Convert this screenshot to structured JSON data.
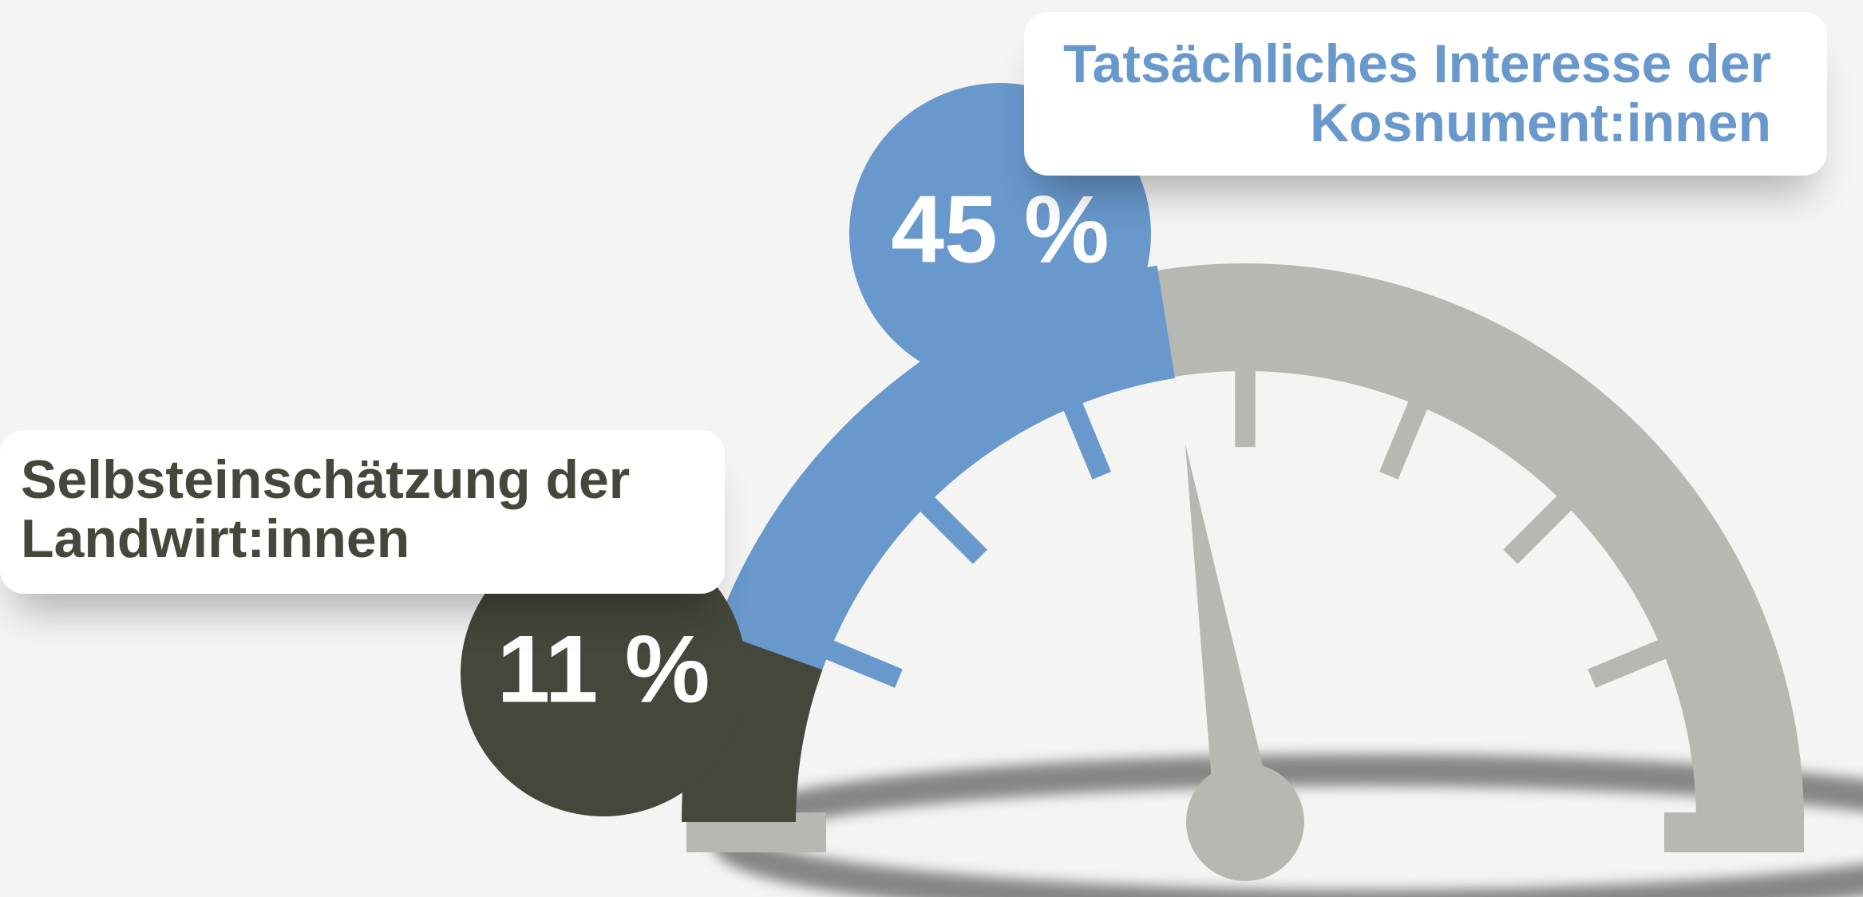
{
  "chart_data": {
    "type": "gauge",
    "ylim": [
      0,
      100
    ],
    "yticks": [
      12.5,
      25,
      37.5,
      50,
      62.5,
      75,
      87.5
    ],
    "track_color": "#b8b8b2",
    "series": [
      {
        "name": "Selbsteinschätzung der Landwirt:innen",
        "color": "#45473a",
        "values": [
          11
        ],
        "value_labels": [
          "11 %"
        ]
      },
      {
        "name": "Tatsächliches Interesse der Kosnument:innen",
        "color": "#6898cc",
        "values": [
          45
        ],
        "value_labels": [
          "45 %"
        ]
      }
    ]
  }
}
